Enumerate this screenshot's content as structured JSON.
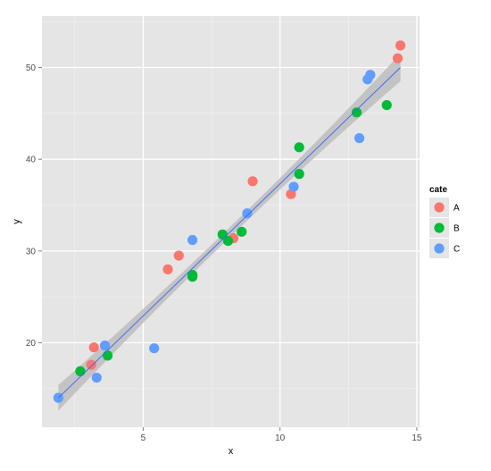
{
  "chart_data": {
    "type": "scatter",
    "title": "",
    "xlabel": "x",
    "ylabel": "y",
    "xlim": [
      1.3,
      15.1
    ],
    "ylim": [
      10.8,
      55.6
    ],
    "x_ticks": [
      5,
      10,
      15
    ],
    "y_ticks": [
      20,
      30,
      40,
      50
    ],
    "x_tick_labels": [
      "5",
      "10",
      "15"
    ],
    "y_tick_labels": [
      "20",
      "30",
      "40",
      "50"
    ],
    "grid": true,
    "legend": {
      "title": "cate",
      "position": "right",
      "entries": [
        "A",
        "B",
        "C"
      ]
    },
    "colors": {
      "A": "#F8766D",
      "B": "#00BA38",
      "C": "#619CFF",
      "fit_line": "#3366FF",
      "ribbon": "#BDBDBD",
      "panel": "#E5E5E5"
    },
    "series": [
      {
        "name": "A",
        "points": [
          [
            3.1,
            17.6
          ],
          [
            3.2,
            19.5
          ],
          [
            5.9,
            28.0
          ],
          [
            6.3,
            29.5
          ],
          [
            8.3,
            31.4
          ],
          [
            9.0,
            37.6
          ],
          [
            10.4,
            36.2
          ],
          [
            14.3,
            51.0
          ],
          [
            14.4,
            52.4
          ]
        ]
      },
      {
        "name": "B",
        "points": [
          [
            2.7,
            16.9
          ],
          [
            3.7,
            18.6
          ],
          [
            6.8,
            27.2
          ],
          [
            6.8,
            27.4
          ],
          [
            7.9,
            31.8
          ],
          [
            8.1,
            31.1
          ],
          [
            8.6,
            32.1
          ],
          [
            10.7,
            38.4
          ],
          [
            10.7,
            41.3
          ],
          [
            12.8,
            45.1
          ],
          [
            13.9,
            45.9
          ]
        ]
      },
      {
        "name": "C",
        "points": [
          [
            1.9,
            14.0
          ],
          [
            3.3,
            16.2
          ],
          [
            3.6,
            19.7
          ],
          [
            5.4,
            19.4
          ],
          [
            6.8,
            31.2
          ],
          [
            8.8,
            34.1
          ],
          [
            10.5,
            37.0
          ],
          [
            12.9,
            42.3
          ],
          [
            13.2,
            48.7
          ],
          [
            13.3,
            49.2
          ]
        ]
      }
    ],
    "fit_line": {
      "method": "lm",
      "from": [
        1.9,
        14.0
      ],
      "to": [
        14.4,
        50.0
      ],
      "se_start": 1.4,
      "se_mid": 0.55,
      "se_end": 1.5
    }
  }
}
